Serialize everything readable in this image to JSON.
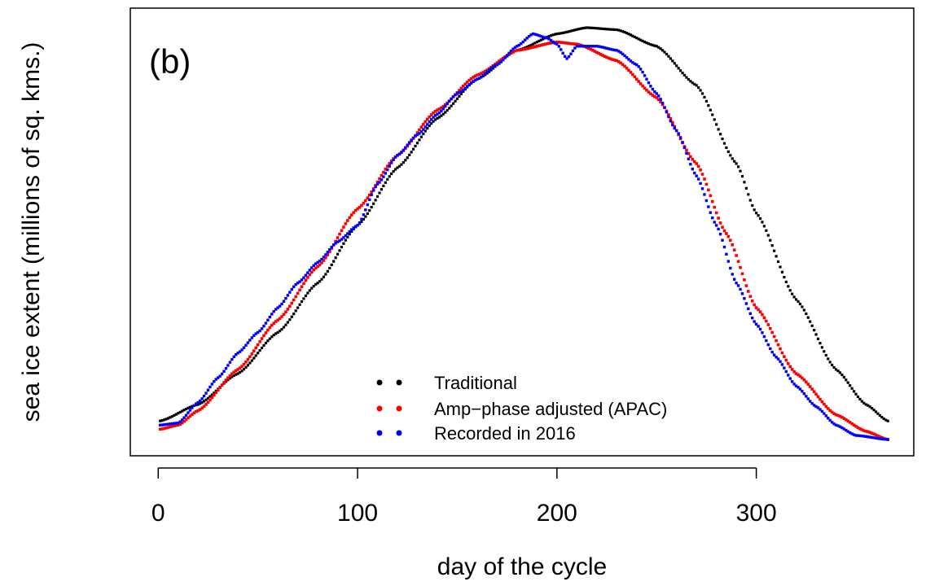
{
  "chart_data": {
    "type": "scatter",
    "panel_label": "(b)",
    "xlabel": "day of the cycle",
    "ylabel": "sea ice extent (millions of sq. kms.)",
    "xlim": [
      -14,
      379
    ],
    "ylim": [
      0.0,
      1.0
    ],
    "x_ticks": [
      0,
      100,
      200,
      300
    ],
    "y_ticks_shown": false,
    "legend_position": "bottom-center",
    "series": [
      {
        "name": "Traditional",
        "color": "#000000",
        "points": [
          [
            1,
            0.045
          ],
          [
            20,
            0.085
          ],
          [
            40,
            0.16
          ],
          [
            60,
            0.26
          ],
          [
            80,
            0.38
          ],
          [
            100,
            0.52
          ],
          [
            120,
            0.66
          ],
          [
            140,
            0.78
          ],
          [
            160,
            0.875
          ],
          [
            180,
            0.945
          ],
          [
            200,
            0.985
          ],
          [
            215,
            1.0
          ],
          [
            230,
            0.995
          ],
          [
            250,
            0.955
          ],
          [
            270,
            0.86
          ],
          [
            290,
            0.67
          ],
          [
            300,
            0.55
          ],
          [
            320,
            0.34
          ],
          [
            340,
            0.17
          ],
          [
            355,
            0.085
          ],
          [
            366,
            0.045
          ]
        ]
      },
      {
        "name": "Amp−phase adjusted (APAC)",
        "color": "#ff0000",
        "points": [
          [
            1,
            0.025
          ],
          [
            10,
            0.035
          ],
          [
            20,
            0.07
          ],
          [
            40,
            0.17
          ],
          [
            60,
            0.29
          ],
          [
            80,
            0.42
          ],
          [
            100,
            0.56
          ],
          [
            120,
            0.69
          ],
          [
            140,
            0.8
          ],
          [
            160,
            0.885
          ],
          [
            180,
            0.945
          ],
          [
            200,
            0.965
          ],
          [
            210,
            0.96
          ],
          [
            230,
            0.92
          ],
          [
            250,
            0.83
          ],
          [
            270,
            0.67
          ],
          [
            285,
            0.5
          ],
          [
            300,
            0.32
          ],
          [
            320,
            0.16
          ],
          [
            340,
            0.06
          ],
          [
            355,
            0.02
          ],
          [
            366,
            0.0
          ]
        ]
      },
      {
        "name": "Recorded in 2016",
        "color": "#0000ff",
        "points": [
          [
            1,
            0.035
          ],
          [
            10,
            0.04
          ],
          [
            20,
            0.09
          ],
          [
            30,
            0.15
          ],
          [
            40,
            0.21
          ],
          [
            50,
            0.26
          ],
          [
            60,
            0.32
          ],
          [
            70,
            0.38
          ],
          [
            80,
            0.43
          ],
          [
            90,
            0.48
          ],
          [
            100,
            0.52
          ],
          [
            110,
            0.62
          ],
          [
            120,
            0.69
          ],
          [
            130,
            0.74
          ],
          [
            140,
            0.79
          ],
          [
            150,
            0.84
          ],
          [
            160,
            0.875
          ],
          [
            170,
            0.91
          ],
          [
            180,
            0.955
          ],
          [
            188,
            0.985
          ],
          [
            195,
            0.975
          ],
          [
            200,
            0.96
          ],
          [
            205,
            0.925
          ],
          [
            210,
            0.955
          ],
          [
            220,
            0.955
          ],
          [
            230,
            0.945
          ],
          [
            240,
            0.91
          ],
          [
            250,
            0.84
          ],
          [
            260,
            0.75
          ],
          [
            270,
            0.64
          ],
          [
            280,
            0.52
          ],
          [
            290,
            0.38
          ],
          [
            300,
            0.28
          ],
          [
            310,
            0.2
          ],
          [
            320,
            0.13
          ],
          [
            330,
            0.08
          ],
          [
            340,
            0.035
          ],
          [
            350,
            0.01
          ],
          [
            366,
            0.0
          ]
        ]
      }
    ]
  }
}
